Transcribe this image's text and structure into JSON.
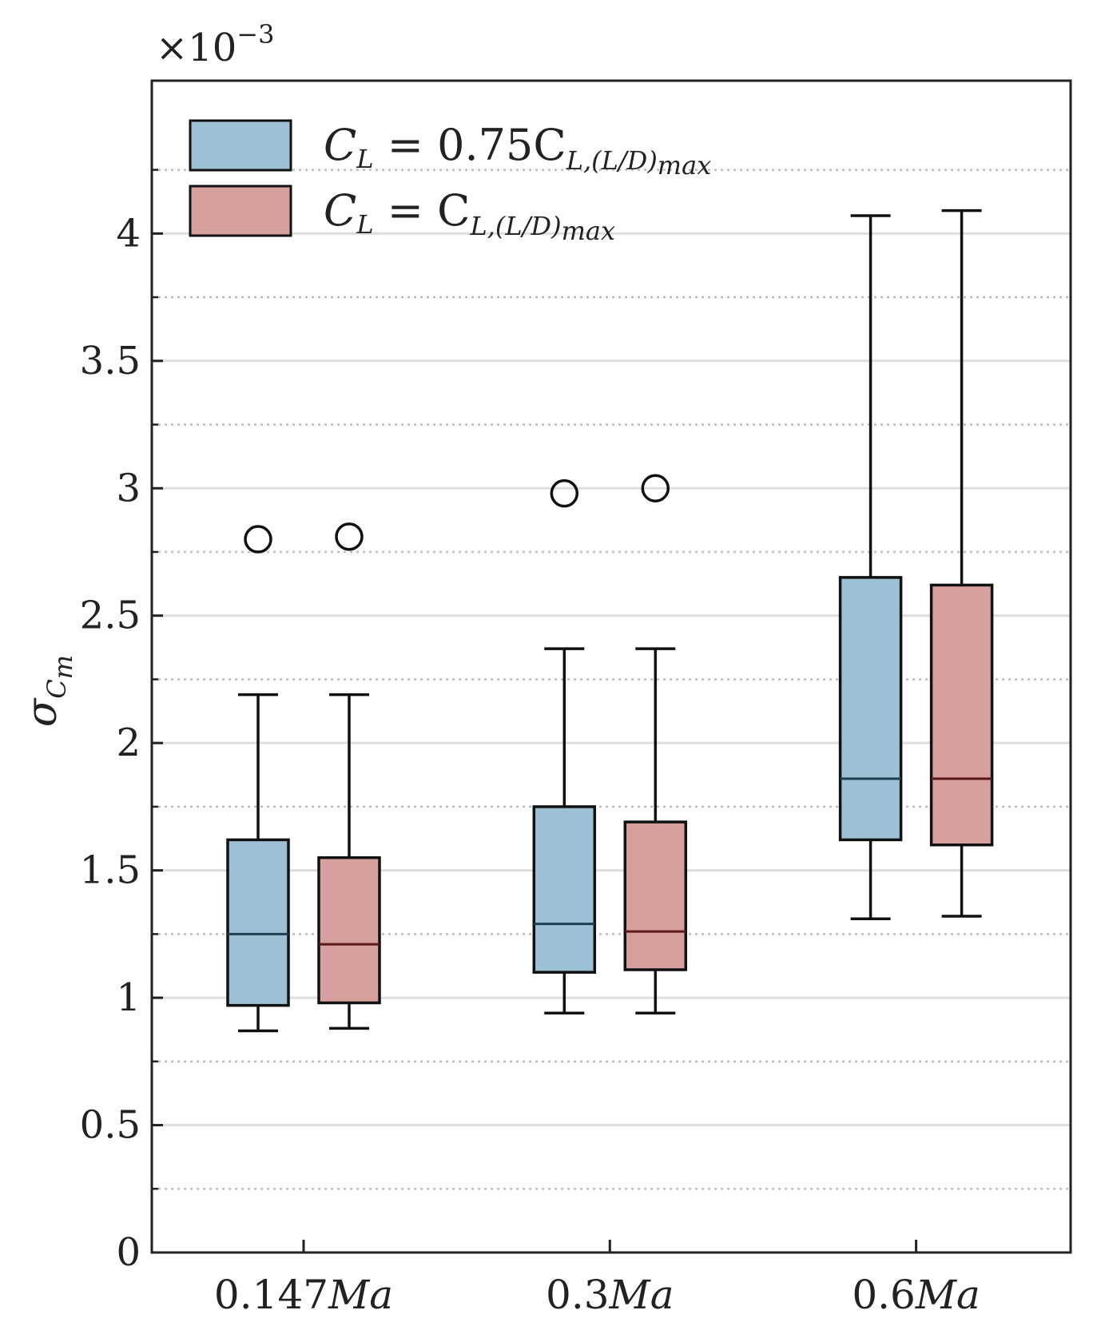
{
  "chart_data": {
    "type": "box",
    "categories": [
      "0.147",
      "0.3",
      "0.6"
    ],
    "category_unit": "Ma",
    "ylabel": "σ",
    "ylabel_sub": "C",
    "ylabel_subsub": "m",
    "y_multiplier": "×10",
    "y_multiplier_exp": "−3",
    "ylim": [
      0,
      4.6
    ],
    "yticks": [
      0,
      0.5,
      1,
      1.5,
      2,
      2.5,
      3,
      3.5,
      4
    ],
    "ytick_labels": [
      "0",
      "0.5",
      "1",
      "1.5",
      "2",
      "2.5",
      "3",
      "3.5",
      "4"
    ],
    "minor_gridlines": true,
    "legend_position": "top-left",
    "series": [
      {
        "name": "C_L = 0.75C_L,(L/D)max",
        "legend_parts": {
          "pre": "C",
          "pre_sub": "L",
          "eq": " = 0.75C",
          "sub": "L,(L/D)",
          "subsub": "max"
        },
        "color": "#9ec0d4",
        "median_color": "#1e3f52",
        "boxes": [
          {
            "whisker_low": 0.87,
            "q1": 0.97,
            "median": 1.25,
            "q3": 1.62,
            "whisker_high": 2.19,
            "outliers": [
              2.8
            ]
          },
          {
            "whisker_low": 0.94,
            "q1": 1.1,
            "median": 1.29,
            "q3": 1.75,
            "whisker_high": 2.37,
            "outliers": [
              2.98
            ]
          },
          {
            "whisker_low": 1.31,
            "q1": 1.62,
            "median": 1.86,
            "q3": 2.65,
            "whisker_high": 4.07,
            "outliers": []
          }
        ]
      },
      {
        "name": "C_L = C_L,(L/D)max",
        "legend_parts": {
          "pre": "C",
          "pre_sub": "L",
          "eq": " = C",
          "sub": "L,(L/D)",
          "subsub": "max"
        },
        "color": "#d5a09e",
        "median_color": "#5a1818",
        "boxes": [
          {
            "whisker_low": 0.88,
            "q1": 0.98,
            "median": 1.21,
            "q3": 1.55,
            "whisker_high": 2.19,
            "outliers": [
              2.81
            ]
          },
          {
            "whisker_low": 0.94,
            "q1": 1.11,
            "median": 1.26,
            "q3": 1.69,
            "whisker_high": 2.37,
            "outliers": [
              3.0
            ]
          },
          {
            "whisker_low": 1.32,
            "q1": 1.6,
            "median": 1.86,
            "q3": 2.62,
            "whisker_high": 4.09,
            "outliers": []
          }
        ]
      }
    ]
  }
}
